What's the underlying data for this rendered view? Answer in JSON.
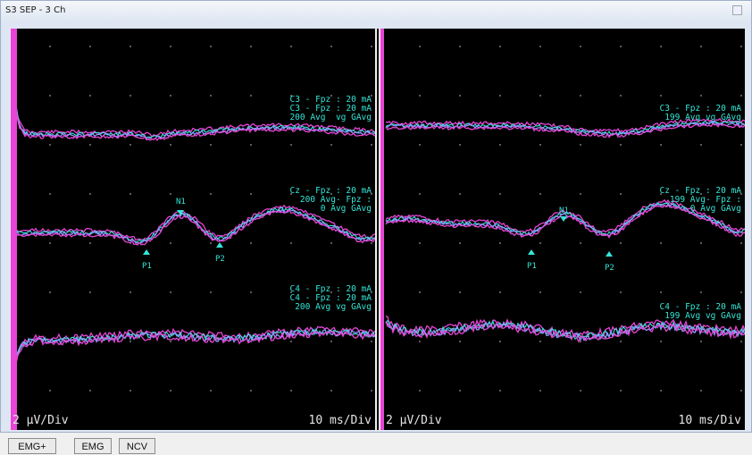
{
  "window": {
    "title": "S3 SEP - 3 Ch"
  },
  "left": {
    "ch1": {
      "line1": "C3 - Fpz : 20 mA",
      "line2": "C3 - Fpz : 20 mA",
      "line3": "200 Avg",
      "line4": "vg GAvg"
    },
    "ch2": {
      "line1": "Cz - Fpz : 20 mA",
      "line2": "200 Avg- Fpz :",
      "line3": "0 Avg GAvg"
    },
    "ch3": {
      "line1": "C4 - Fpz : 20 mA",
      "line2": "C4 - Fpz : 20 mA",
      "line3": "200 Avg vg GAvg"
    },
    "peaks": {
      "n1": "N1",
      "p1": "P1",
      "p2": "P2"
    },
    "scale_v": "2 µV/Div",
    "scale_t": "10 ms/Div"
  },
  "right": {
    "ch1": {
      "line1": "C3 - Fpz : 20 mA",
      "line2": "199 Avg vg GAvg"
    },
    "ch2": {
      "line1": "Cz - Fpz : 20 mA",
      "line2": "199 Avg- Fpz :",
      "line3": "0 Avg GAvg"
    },
    "ch3": {
      "line1": "C4 - Fpz : 20 mA",
      "line2": "199 Avg vg GAvg"
    },
    "peaks": {
      "n1": "N1",
      "p1": "P1",
      "p2": "P2"
    },
    "scale_v": "2 µV/Div",
    "scale_t": "10 ms/Div"
  },
  "buttons": [
    "EMG+",
    "EMG",
    "NCV"
  ],
  "colors": {
    "trace_a": "#e844d6",
    "trace_b": "#33e6d7",
    "trace_c": "#8f9bff",
    "background": "#000000"
  }
}
